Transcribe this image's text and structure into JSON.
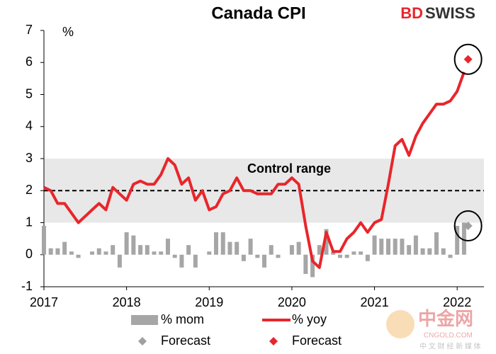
{
  "chart_data": {
    "type": "combo",
    "title": "Canada CPI",
    "y_unit": "%",
    "brand": {
      "part1": "BD",
      "part2": "SWISS"
    },
    "annotation": "Control range",
    "control_range": [
      1,
      3
    ],
    "target": 2,
    "watermark": {
      "name": "中金网",
      "site": "CNGOLD.COM",
      "tagline": "中 文 财 经 新 媒 体"
    },
    "categories": [
      "2017",
      null,
      null,
      null,
      null,
      null,
      null,
      null,
      null,
      null,
      null,
      null,
      "2018",
      null,
      null,
      null,
      null,
      null,
      null,
      null,
      null,
      null,
      null,
      null,
      "2019",
      null,
      null,
      null,
      null,
      null,
      null,
      null,
      null,
      null,
      null,
      null,
      "2020",
      null,
      null,
      null,
      null,
      null,
      null,
      null,
      null,
      null,
      null,
      null,
      "2021",
      null,
      null,
      null,
      null,
      null,
      null,
      null,
      null,
      null,
      null,
      null,
      "2022",
      null,
      null
    ],
    "ylim": [
      -1,
      7
    ],
    "yticks": [
      -1,
      0,
      1,
      2,
      3,
      4,
      5,
      6,
      7
    ],
    "series": [
      {
        "name": "% mom",
        "type": "bar",
        "color": "#a6a6a6",
        "values": [
          0.9,
          0.2,
          0.2,
          0.4,
          0.1,
          -0.1,
          0.0,
          0.1,
          0.2,
          0.1,
          0.3,
          -0.4,
          0.7,
          0.6,
          0.3,
          0.3,
          0.1,
          0.1,
          0.5,
          -0.1,
          -0.4,
          0.3,
          -0.4,
          0.0,
          0.1,
          0.7,
          0.7,
          0.4,
          0.4,
          -0.2,
          0.5,
          -0.1,
          -0.4,
          0.3,
          -0.1,
          0.0,
          0.3,
          0.4,
          -0.6,
          -0.7,
          0.3,
          0.8,
          0.1,
          -0.1,
          -0.1,
          0.1,
          0.1,
          -0.2,
          0.6,
          0.5,
          0.5,
          0.5,
          0.5,
          0.3,
          0.6,
          0.2,
          0.2,
          0.7,
          0.2,
          -0.1,
          0.9,
          1.0,
          null
        ]
      },
      {
        "name": "% yoy",
        "type": "line",
        "color": "#e8262b",
        "values": [
          2.1,
          2.0,
          1.6,
          1.6,
          1.3,
          1.0,
          1.2,
          1.4,
          1.6,
          1.4,
          2.1,
          1.9,
          1.7,
          2.2,
          2.3,
          2.2,
          2.2,
          2.5,
          3.0,
          2.8,
          2.2,
          2.4,
          1.7,
          2.0,
          1.4,
          1.5,
          1.9,
          2.0,
          2.4,
          2.0,
          2.0,
          1.9,
          1.9,
          1.9,
          2.2,
          2.2,
          2.4,
          2.2,
          0.9,
          -0.2,
          -0.4,
          0.7,
          0.1,
          0.1,
          0.5,
          0.7,
          1.0,
          0.7,
          1.0,
          1.1,
          2.2,
          3.4,
          3.6,
          3.1,
          3.7,
          4.1,
          4.4,
          4.7,
          4.7,
          4.8,
          5.1,
          5.7,
          null
        ]
      },
      {
        "name": "Forecast",
        "type": "scatter",
        "color": "#a0a0a0",
        "values": [
          null,
          null,
          null,
          null,
          null,
          null,
          null,
          null,
          null,
          null,
          null,
          null,
          null,
          null,
          null,
          null,
          null,
          null,
          null,
          null,
          null,
          null,
          null,
          null,
          null,
          null,
          null,
          null,
          null,
          null,
          null,
          null,
          null,
          null,
          null,
          null,
          null,
          null,
          null,
          null,
          null,
          null,
          null,
          null,
          null,
          null,
          null,
          null,
          null,
          null,
          null,
          null,
          null,
          null,
          null,
          null,
          null,
          null,
          null,
          null,
          null,
          null,
          0.9
        ]
      },
      {
        "name": "Forecast",
        "type": "scatter",
        "color": "#e8262b",
        "values": [
          null,
          null,
          null,
          null,
          null,
          null,
          null,
          null,
          null,
          null,
          null,
          null,
          null,
          null,
          null,
          null,
          null,
          null,
          null,
          null,
          null,
          null,
          null,
          null,
          null,
          null,
          null,
          null,
          null,
          null,
          null,
          null,
          null,
          null,
          null,
          null,
          null,
          null,
          null,
          null,
          null,
          null,
          null,
          null,
          null,
          null,
          null,
          null,
          null,
          null,
          null,
          null,
          null,
          null,
          null,
          null,
          null,
          null,
          null,
          null,
          null,
          null,
          6.1
        ]
      }
    ]
  }
}
